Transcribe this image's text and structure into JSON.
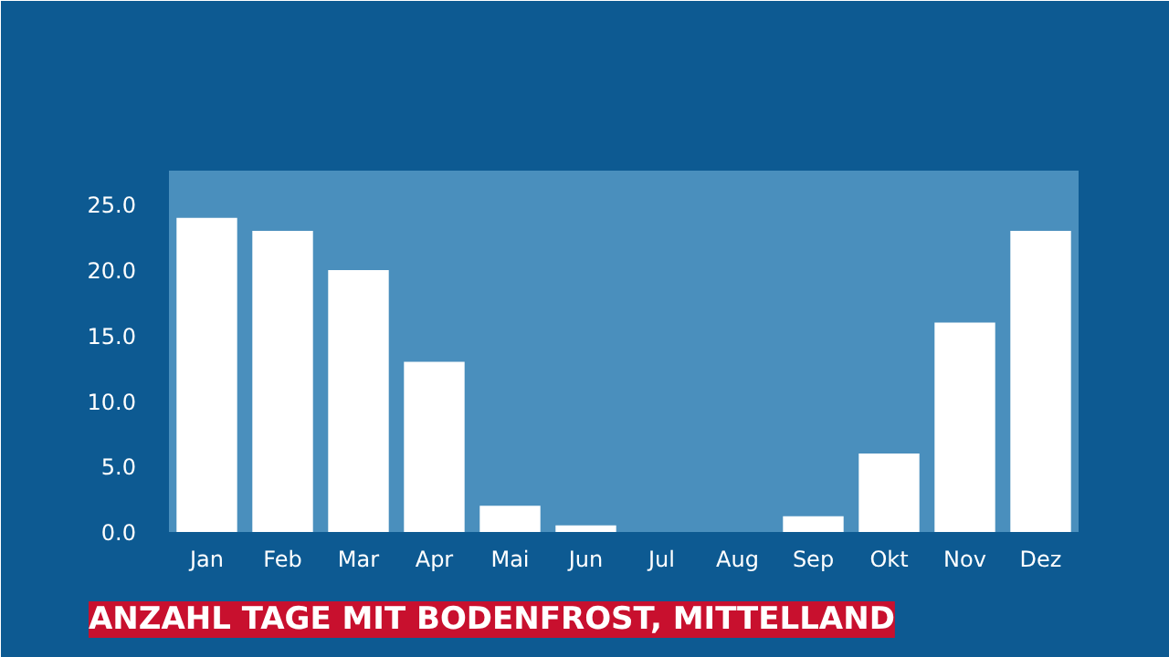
{
  "chart_data": {
    "type": "bar",
    "title": "ANZAHL TAGE MIT BODENFROST, MITTELLAND",
    "categories": [
      "Jan",
      "Feb",
      "Mar",
      "Apr",
      "Mai",
      "Jun",
      "Jul",
      "Aug",
      "Sep",
      "Okt",
      "Nov",
      "Dez"
    ],
    "values": [
      24,
      23,
      20,
      13,
      2,
      0.5,
      0,
      0,
      1.2,
      6,
      16,
      23
    ],
    "color": "#ffffff",
    "ylim": [
      0,
      27.6
    ],
    "yticks": [
      {
        "value": 0,
        "label": "0.0"
      },
      {
        "value": 5,
        "label": "5.0"
      },
      {
        "value": 10,
        "label": "10.0"
      },
      {
        "value": 15,
        "label": "15.0"
      },
      {
        "value": 20,
        "label": "20.0"
      },
      {
        "value": 25,
        "label": "25.0"
      }
    ],
    "grid": false
  }
}
